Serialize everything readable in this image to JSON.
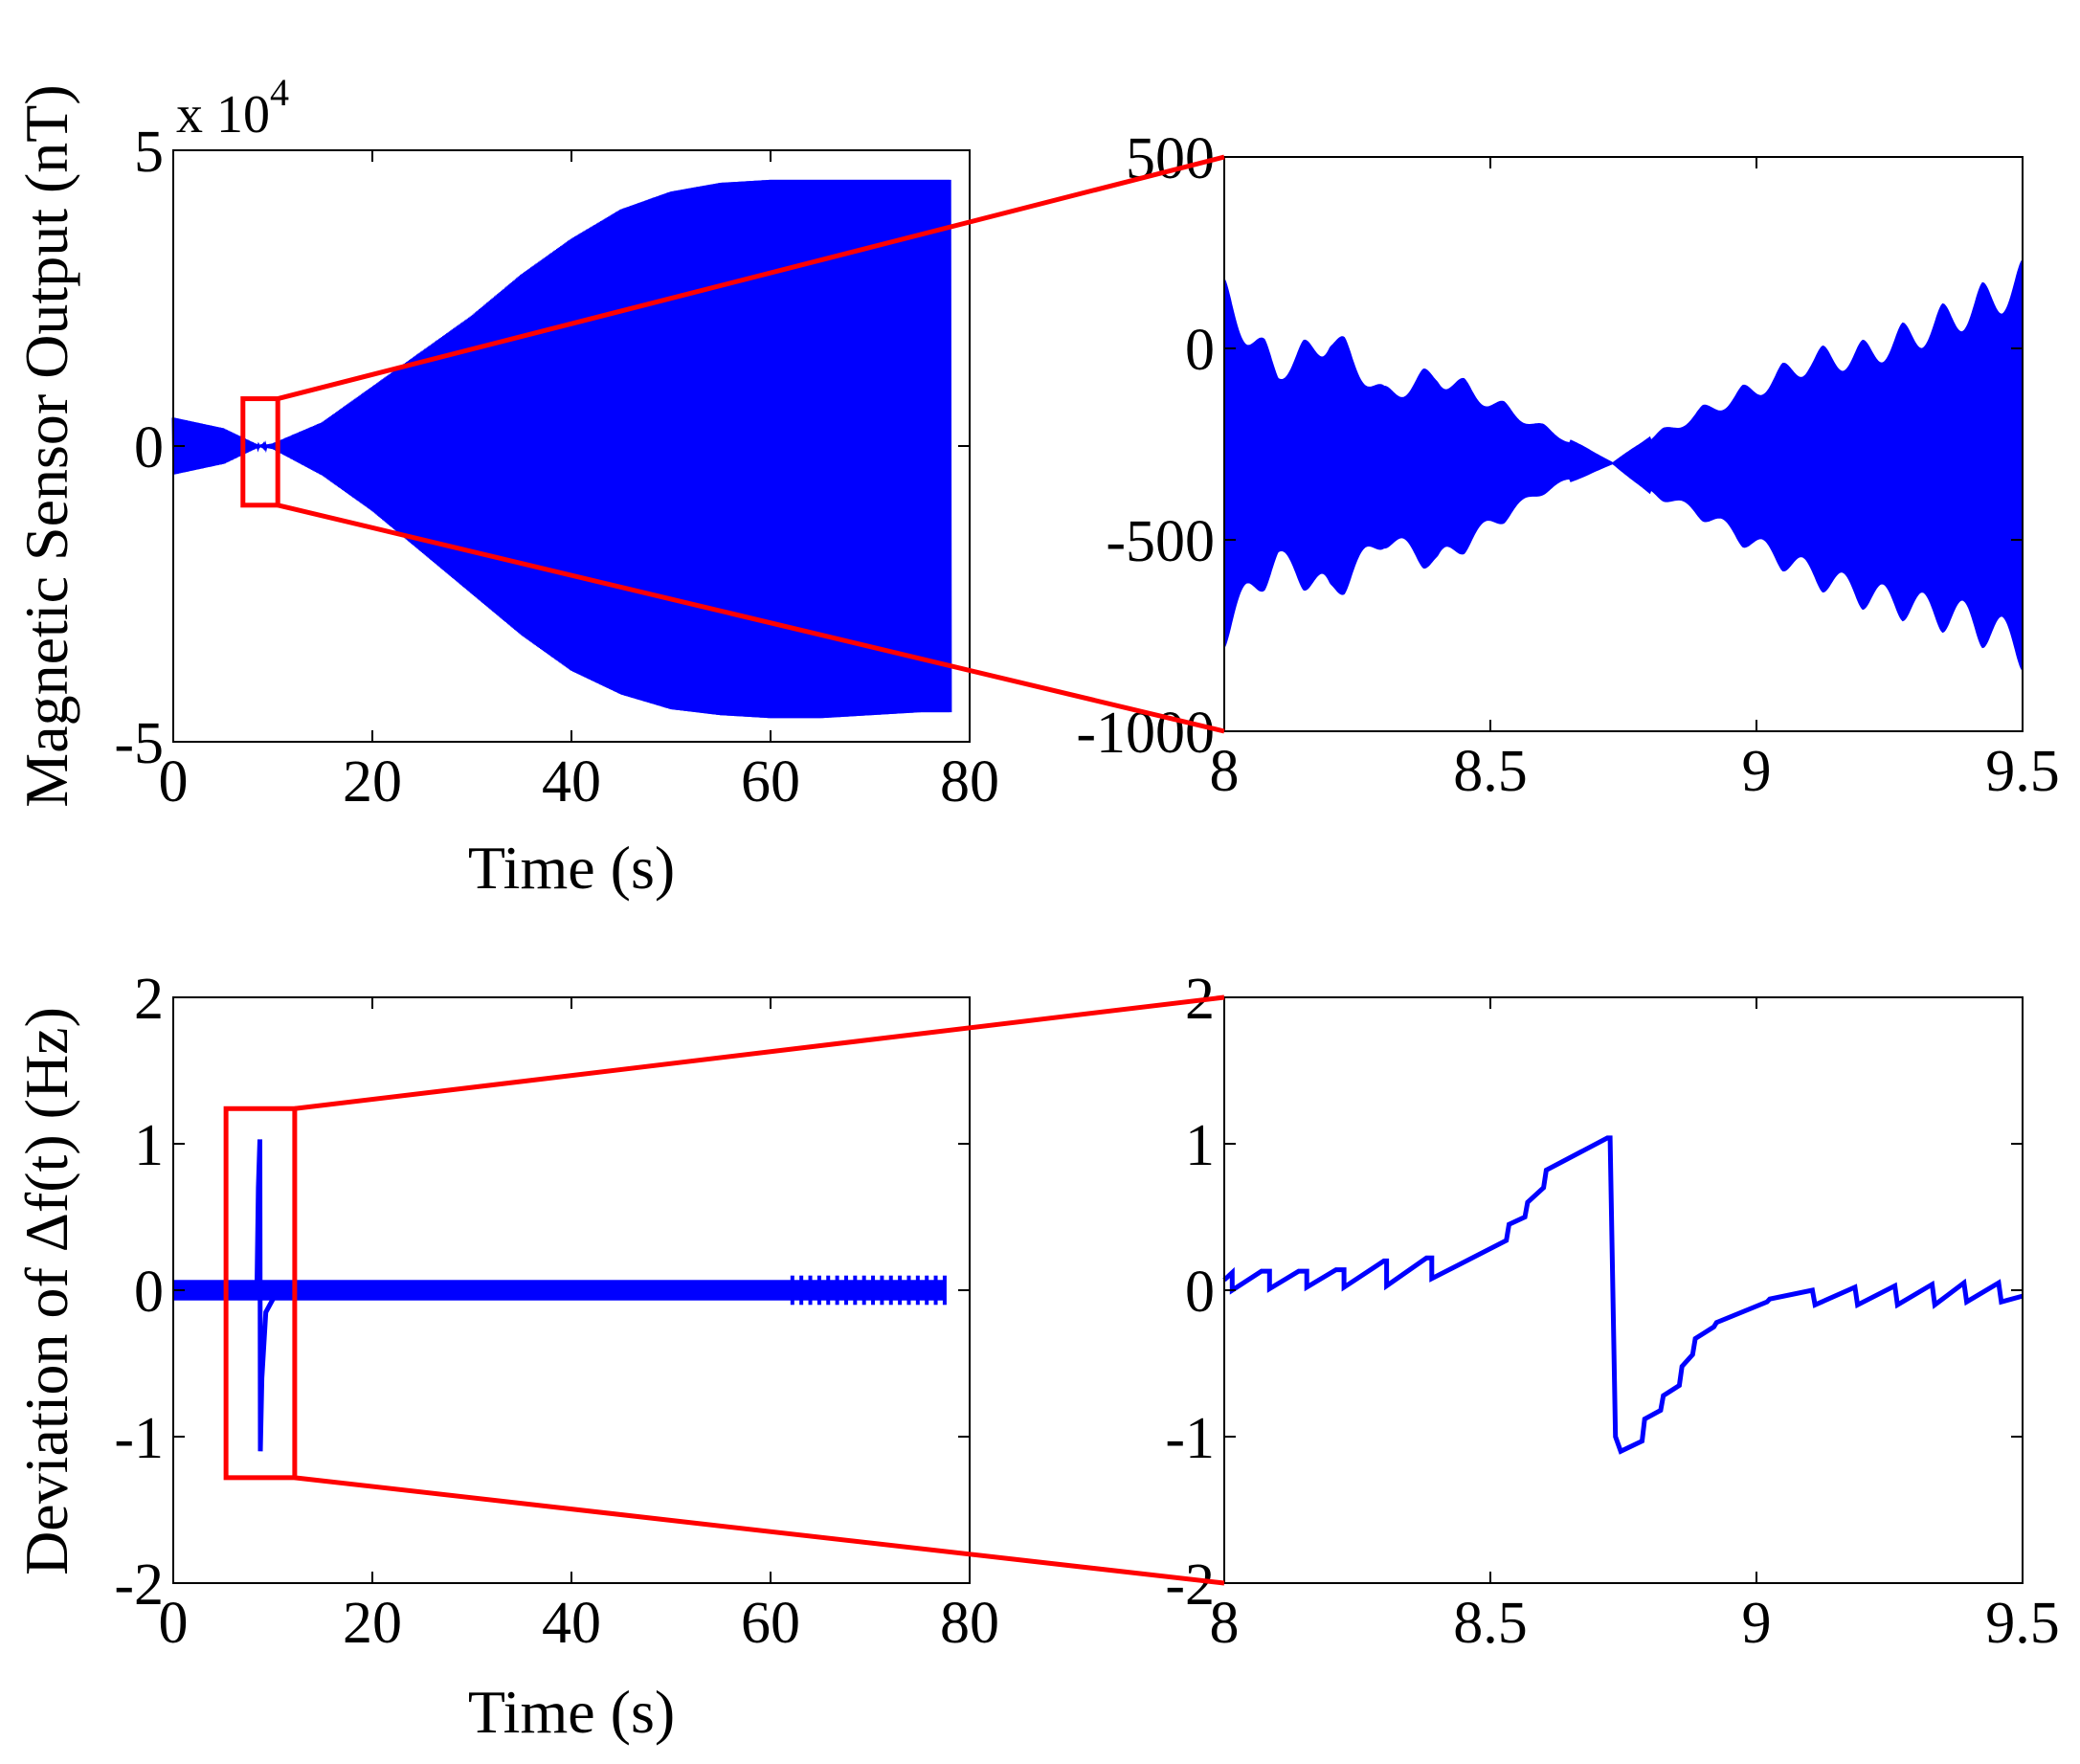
{
  "figure": {
    "colors": {
      "signal": "#0000ff",
      "zoom": "#ff0000",
      "axis": "#000000",
      "background": "#ffffff"
    }
  },
  "chart_data": [
    {
      "id": "sensor-full",
      "type": "line",
      "xlabel": "Time (s)",
      "ylabel": "Magnetic Sensor Output (nT)",
      "xlim": [
        0,
        80
      ],
      "ylim": [
        -50000,
        50000
      ],
      "xticks": [
        0,
        20,
        40,
        60,
        80
      ],
      "xtick_labels": [
        "0",
        "20",
        "40",
        "60",
        "80"
      ],
      "yticks": [
        -50000,
        0,
        50000
      ],
      "ytick_labels": [
        "-5",
        "0",
        "5"
      ],
      "y_exponent": {
        "base": "x 10",
        "power": "4"
      },
      "envelope": {
        "t": [
          0,
          5,
          8.7,
          10,
          15,
          20,
          25,
          30,
          35,
          40,
          45,
          50,
          55,
          60,
          65,
          70,
          75,
          78
        ],
        "upper": [
          4800,
          3000,
          0,
          400,
          4000,
          10000,
          16000,
          22000,
          29000,
          35000,
          40000,
          43000,
          44500,
          45000,
          45000,
          45000,
          45000,
          45000
        ],
        "lower": [
          -4800,
          -3000,
          0,
          -500,
          -5000,
          -11000,
          -18000,
          -25000,
          -32000,
          -38000,
          -42000,
          -44500,
          -45500,
          -46000,
          -46000,
          -45500,
          -45000,
          -45000
        ]
      },
      "zoom_box": {
        "x": [
          7,
          10.5
        ],
        "y": [
          -10000,
          8000
        ]
      }
    },
    {
      "id": "sensor-zoom",
      "type": "line",
      "xlim": [
        8,
        9.5
      ],
      "ylim": [
        -1000,
        500
      ],
      "xticks": [
        8,
        8.5,
        9,
        9.5
      ],
      "xtick_labels": [
        "8",
        "8.5",
        "9",
        "9.5"
      ],
      "yticks": [
        -1000,
        -500,
        0,
        500
      ],
      "ytick_labels": [
        "-1000",
        "-500",
        "0",
        "500"
      ],
      "envelope": {
        "t": [
          8,
          8.1,
          8.2,
          8.3,
          8.4,
          8.5,
          8.6,
          8.73,
          8.8,
          8.9,
          9,
          9.1,
          9.2,
          9.3,
          9.4,
          9.5
        ],
        "upper": [
          180,
          -30,
          70,
          -100,
          -40,
          -120,
          -200,
          -300,
          -230,
          -150,
          -80,
          0,
          20,
          80,
          150,
          230
        ],
        "lower": [
          -780,
          -580,
          -680,
          -520,
          -590,
          -480,
          -380,
          -300,
          -380,
          -450,
          -540,
          -620,
          -680,
          -720,
          -760,
          -840
        ]
      }
    },
    {
      "id": "deviation-full",
      "type": "line",
      "xlabel": "Time (s)",
      "ylabel": "Deviation of Δf(t) (Hz)",
      "xlim": [
        0,
        80
      ],
      "ylim": [
        -2,
        2
      ],
      "xticks": [
        0,
        20,
        40,
        60,
        80
      ],
      "xtick_labels": [
        "0",
        "20",
        "40",
        "60",
        "80"
      ],
      "yticks": [
        -2,
        -1,
        0,
        1,
        2
      ],
      "ytick_labels": [
        "-2",
        "-1",
        "0",
        "1",
        "2"
      ],
      "baseline": {
        "t": [
          0,
          77.5
        ],
        "upper": 0.07,
        "lower": -0.07
      },
      "spike": {
        "t": [
          8.4,
          8.55,
          8.7,
          8.75,
          8.9,
          9.3,
          10.5
        ],
        "y": [
          0,
          0.7,
          1.03,
          -1.1,
          -0.6,
          -0.15,
          0
        ]
      },
      "zoom_box": {
        "x": [
          5.3,
          12.2
        ],
        "y": [
          -1.28,
          1.24
        ]
      }
    },
    {
      "id": "deviation-zoom",
      "type": "line",
      "xlim": [
        8,
        9.5
      ],
      "ylim": [
        -2,
        2
      ],
      "xticks": [
        8,
        8.5,
        9,
        9.5
      ],
      "xtick_labels": [
        "8",
        "8.5",
        "9",
        "9.5"
      ],
      "yticks": [
        -2,
        -1,
        0,
        1,
        2
      ],
      "ytick_labels": [
        "-2",
        "-1",
        "0",
        "1",
        "2"
      ],
      "x": [
        8,
        8.015,
        8.015,
        8.07,
        8.085,
        8.085,
        8.14,
        8.155,
        8.155,
        8.21,
        8.225,
        8.225,
        8.3,
        8.305,
        8.305,
        8.38,
        8.39,
        8.39,
        8.53,
        8.535,
        8.535,
        8.565,
        8.57,
        8.57,
        8.6,
        8.605,
        8.605,
        8.72,
        8.725,
        8.735,
        8.745,
        8.745,
        8.785,
        8.79,
        8.79,
        8.82,
        8.825,
        8.825,
        8.855,
        8.86,
        8.86,
        8.88,
        8.885,
        8.885,
        8.92,
        8.925,
        8.925,
        9.02,
        9.025,
        9.025,
        9.105,
        9.11,
        9.11,
        9.185,
        9.19,
        9.19,
        9.26,
        9.265,
        9.265,
        9.33,
        9.335,
        9.335,
        9.39,
        9.395,
        9.395,
        9.455,
        9.46,
        9.46,
        9.5
      ],
      "y": [
        0.07,
        0.12,
        0,
        0.13,
        0.13,
        0.01,
        0.13,
        0.13,
        0.02,
        0.14,
        0.14,
        0.02,
        0.2,
        0.2,
        0.03,
        0.22,
        0.22,
        0.08,
        0.34,
        0.45,
        0.45,
        0.5,
        0.6,
        0.6,
        0.7,
        0.82,
        0.82,
        1.04,
        1.04,
        -1,
        -1.1,
        -1.1,
        -1.03,
        -0.88,
        -0.88,
        -0.82,
        -0.72,
        -0.72,
        -0.65,
        -0.52,
        -0.52,
        -0.44,
        -0.33,
        -0.33,
        -0.25,
        -0.22,
        -0.22,
        -0.08,
        -0.06,
        -0.06,
        0,
        -0.1,
        -0.1,
        0.02,
        -0.1,
        -0.1,
        0.03,
        -0.1,
        -0.1,
        0.04,
        -0.1,
        -0.1,
        0.05,
        -0.08,
        -0.08,
        0.05,
        -0.08,
        -0.08,
        -0.04
      ]
    }
  ]
}
